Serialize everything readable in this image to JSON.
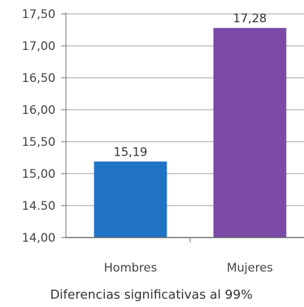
{
  "chart_data": {
    "type": "bar",
    "categories": [
      "Hombres",
      "Mujeres"
    ],
    "values": [
      15.19,
      17.28
    ],
    "value_labels": [
      "15,19",
      "17,28"
    ],
    "colors": [
      "#2072c4",
      "#7a4aa6"
    ],
    "ylim": [
      14.0,
      17.5
    ],
    "y_ticks": [
      14.0,
      14.5,
      15.0,
      15.5,
      16.0,
      16.5,
      17.0,
      17.5
    ],
    "y_tick_labels": [
      "14,00",
      "14.50",
      "15,00",
      "15,50",
      "16,00",
      "16,50",
      "17,00",
      "17,50"
    ],
    "grid": true,
    "footnote": "Diferencias significativas al 99%"
  }
}
